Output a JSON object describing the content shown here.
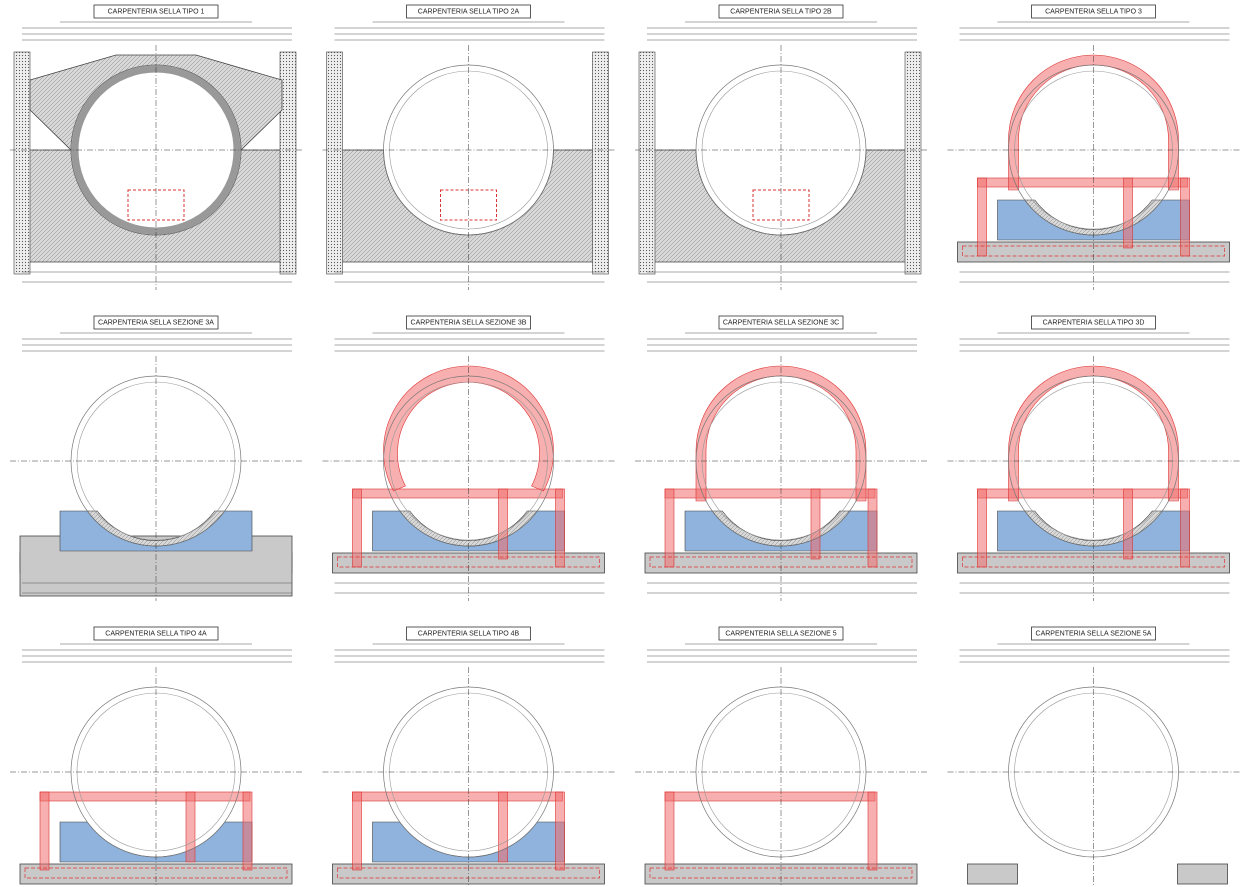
{
  "panels": [
    {
      "title": "CARPENTERIA SELLA TIPO 1"
    },
    {
      "title": "CARPENTERIA SELLA TIPO 2A"
    },
    {
      "title": "CARPENTERIA SELLA TIPO 2B"
    },
    {
      "title": "CARPENTERIA SELLA TIPO 3"
    },
    {
      "title": "CARPENTERIA SELLA SEZIONE 3A"
    },
    {
      "title": "CARPENTERIA SELLA SEZIONE 3B"
    },
    {
      "title": "CARPENTERIA SELLA SEZIONE 3C"
    },
    {
      "title": "CARPENTERIA SELLA TIPO 3D"
    },
    {
      "title": "CARPENTERIA SELLA TIPO 4A"
    },
    {
      "title": "CARPENTERIA SELLA TIPO 4B"
    },
    {
      "title": "CARPENTERIA SELLA SEZIONE 5"
    },
    {
      "title": "CARPENTERIA SELLA SEZIONE 5A"
    }
  ]
}
